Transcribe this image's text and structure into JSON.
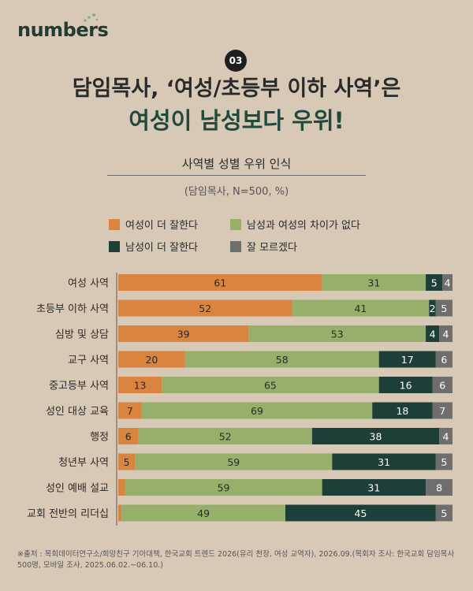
{
  "brand": {
    "logo_text": "numbers"
  },
  "header": {
    "badge": "03",
    "title_line1": "담임목사, ‘여성/초등부 이하 사역’은",
    "title_line2": "여성이 남성보다 우위!",
    "subtitle": "사역별 성별 우위 인식",
    "unit_note": "(담임목사, N=500, %)"
  },
  "legend": [
    {
      "label": "여성이 더 잘한다",
      "color": "#d9843f"
    },
    {
      "label": "남성과 여성의 차이가 없다",
      "color": "#96b06b"
    },
    {
      "label": "남성이 더 잘한다",
      "color": "#1d3f37"
    },
    {
      "label": "잘 모르겠다",
      "color": "#6e6e6e"
    }
  ],
  "chart_data": {
    "type": "bar",
    "orientation": "horizontal",
    "stacked": true,
    "title": "사역별 성별 우위 인식",
    "categories": [
      "여성 사역",
      "초등부 이하 사역",
      "심방 및 상담",
      "교구 사역",
      "중고등부 사역",
      "성인 대상 교육",
      "행정",
      "청년부 사역",
      "성인 예배 설교",
      "교회 전반의 리더십"
    ],
    "series": [
      {
        "name": "여성이 더 잘한다",
        "color": "#d9843f",
        "values": [
          61,
          52,
          39,
          20,
          13,
          7,
          6,
          5,
          2,
          1
        ]
      },
      {
        "name": "남성과 여성의 차이가 없다",
        "color": "#96b06b",
        "values": [
          31,
          41,
          53,
          58,
          65,
          69,
          52,
          59,
          59,
          49
        ]
      },
      {
        "name": "남성이 더 잘한다",
        "color": "#1d3f37",
        "values": [
          5,
          2,
          4,
          17,
          16,
          18,
          38,
          31,
          31,
          45
        ]
      },
      {
        "name": "잘 모르겠다",
        "color": "#6e6e6e",
        "values": [
          4,
          5,
          4,
          6,
          6,
          7,
          4,
          5,
          8,
          5
        ]
      }
    ],
    "xlim": [
      0,
      100
    ]
  },
  "footnote": "※출처 : 목회데이터연구소/희망친구 기아대책, 한국교회 트렌드 2026(유리 천장, 여성 교역자), 2026.09.(목회자 조사: 한국교회 담임목사 500명, 모바일 조사, 2025.06.02.~06.10.)"
}
